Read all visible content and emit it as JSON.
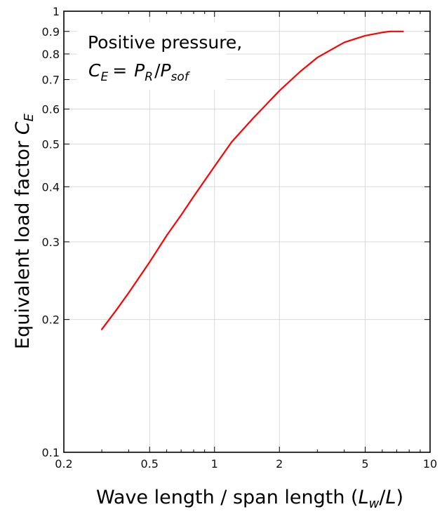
{
  "chart_data": {
    "type": "line",
    "xscale": "log",
    "yscale": "log",
    "xlim": [
      0.2,
      10
    ],
    "ylim": [
      0.1,
      1
    ],
    "grid": true,
    "x_ticks": [
      0.2,
      0.5,
      1,
      2,
      5,
      10
    ],
    "x_tick_labels": [
      "0.2",
      "0.5",
      "1",
      "2",
      "5",
      "10"
    ],
    "y_ticks": [
      0.1,
      0.2,
      0.3,
      0.4,
      0.5,
      0.6,
      0.7,
      0.8,
      0.9,
      1
    ],
    "y_tick_labels": [
      "0.1",
      "0.2",
      "0.3",
      "0.4",
      "0.5",
      "0.6",
      "0.7",
      "0.8",
      "0.9",
      "1"
    ],
    "xlabel": {
      "text": "Wave length / span length (",
      "var": "L",
      "var_sub": "w",
      "tail": "/",
      "var2": "L",
      "close": ")"
    },
    "ylabel": {
      "text": "Equivalent load factor ",
      "var": "C",
      "var_sub": "E"
    },
    "annotation": {
      "line1": "Positive pressure,",
      "lhs": "C",
      "lhs_sub": "E",
      "eq": "=",
      "num": "P",
      "num_sub": "R",
      "den": "P",
      "den_sub": "sof"
    },
    "series": [
      {
        "color": "#ff0000",
        "x": [
          0.3,
          0.35,
          0.4,
          0.5,
          0.6,
          0.7,
          0.8,
          1.0,
          1.2,
          1.5,
          2.0,
          2.5,
          3.0,
          4.0,
          5.0,
          6.0,
          6.5,
          7.0,
          7.5
        ],
        "y": [
          0.19,
          0.21,
          0.23,
          0.27,
          0.31,
          0.345,
          0.38,
          0.445,
          0.505,
          0.57,
          0.66,
          0.73,
          0.785,
          0.85,
          0.88,
          0.895,
          0.9,
          0.9,
          0.9
        ]
      }
    ]
  }
}
